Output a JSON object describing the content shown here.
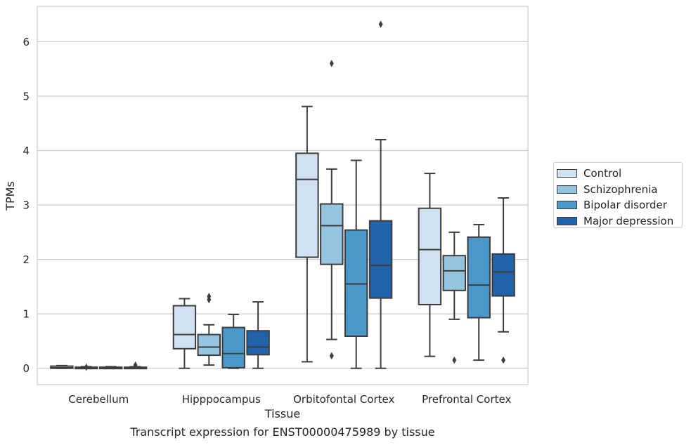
{
  "caption": "Transcript expression for ENST00000475989 by tissue",
  "chart_data": {
    "type": "box",
    "xlabel": "Tissue",
    "ylabel": "TPMs",
    "ylim": [
      -0.3,
      6.65
    ],
    "yticks": [
      0,
      1,
      2,
      3,
      4,
      5,
      6
    ],
    "grid": true,
    "legend_position": "right",
    "categories": [
      "Cerebellum",
      "Hipppocampus",
      "Orbitofontal Cortex",
      "Prefrontal Cortex"
    ],
    "series": [
      {
        "name": "Control",
        "color": "#d0e1f2",
        "boxes": [
          {
            "whislo": 0.0,
            "q1": 0.0,
            "med": 0.01,
            "q3": 0.04,
            "whishi": 0.05,
            "fliers": []
          },
          {
            "whislo": 0.0,
            "q1": 0.36,
            "med": 0.62,
            "q3": 1.15,
            "whishi": 1.28,
            "fliers": []
          },
          {
            "whislo": 0.12,
            "q1": 2.04,
            "med": 3.47,
            "q3": 3.95,
            "whishi": 4.81,
            "fliers": []
          },
          {
            "whislo": 0.22,
            "q1": 1.17,
            "med": 2.18,
            "q3": 2.94,
            "whishi": 3.58,
            "fliers": []
          }
        ]
      },
      {
        "name": "Schizophrenia",
        "color": "#94c4df",
        "boxes": [
          {
            "whislo": 0.0,
            "q1": 0.0,
            "med": 0.01,
            "q3": 0.02,
            "whishi": 0.03,
            "fliers": [
              0.02
            ]
          },
          {
            "whislo": 0.06,
            "q1": 0.24,
            "med": 0.39,
            "q3": 0.62,
            "whishi": 0.8,
            "fliers": [
              1.26,
              1.32
            ]
          },
          {
            "whislo": 0.53,
            "q1": 1.91,
            "med": 2.62,
            "q3": 3.02,
            "whishi": 3.66,
            "fliers": [
              0.23,
              5.6
            ]
          },
          {
            "whislo": 0.9,
            "q1": 1.43,
            "med": 1.79,
            "q3": 2.07,
            "whishi": 2.5,
            "fliers": [
              0.15
            ]
          }
        ]
      },
      {
        "name": "Bipolar disorder",
        "color": "#4a98c9",
        "boxes": [
          {
            "whislo": 0.0,
            "q1": 0.0,
            "med": 0.01,
            "q3": 0.02,
            "whishi": 0.03,
            "fliers": []
          },
          {
            "whislo": 0.0,
            "q1": 0.01,
            "med": 0.27,
            "q3": 0.75,
            "whishi": 0.99,
            "fliers": []
          },
          {
            "whislo": 0.0,
            "q1": 0.59,
            "med": 1.55,
            "q3": 2.54,
            "whishi": 3.82,
            "fliers": []
          },
          {
            "whislo": 0.15,
            "q1": 0.93,
            "med": 1.53,
            "q3": 2.41,
            "whishi": 2.64,
            "fliers": []
          }
        ]
      },
      {
        "name": "Major depression",
        "color": "#2163aa",
        "boxes": [
          {
            "whislo": 0.0,
            "q1": 0.0,
            "med": 0.01,
            "q3": 0.02,
            "whishi": 0.03,
            "fliers": [
              0.06
            ]
          },
          {
            "whislo": 0.0,
            "q1": 0.25,
            "med": 0.39,
            "q3": 0.69,
            "whishi": 1.22,
            "fliers": []
          },
          {
            "whislo": 0.0,
            "q1": 1.29,
            "med": 1.89,
            "q3": 2.71,
            "whishi": 4.2,
            "fliers": [
              6.32
            ]
          },
          {
            "whislo": 0.67,
            "q1": 1.33,
            "med": 1.77,
            "q3": 2.1,
            "whishi": 3.13,
            "fliers": [
              0.15
            ]
          }
        ]
      }
    ]
  }
}
